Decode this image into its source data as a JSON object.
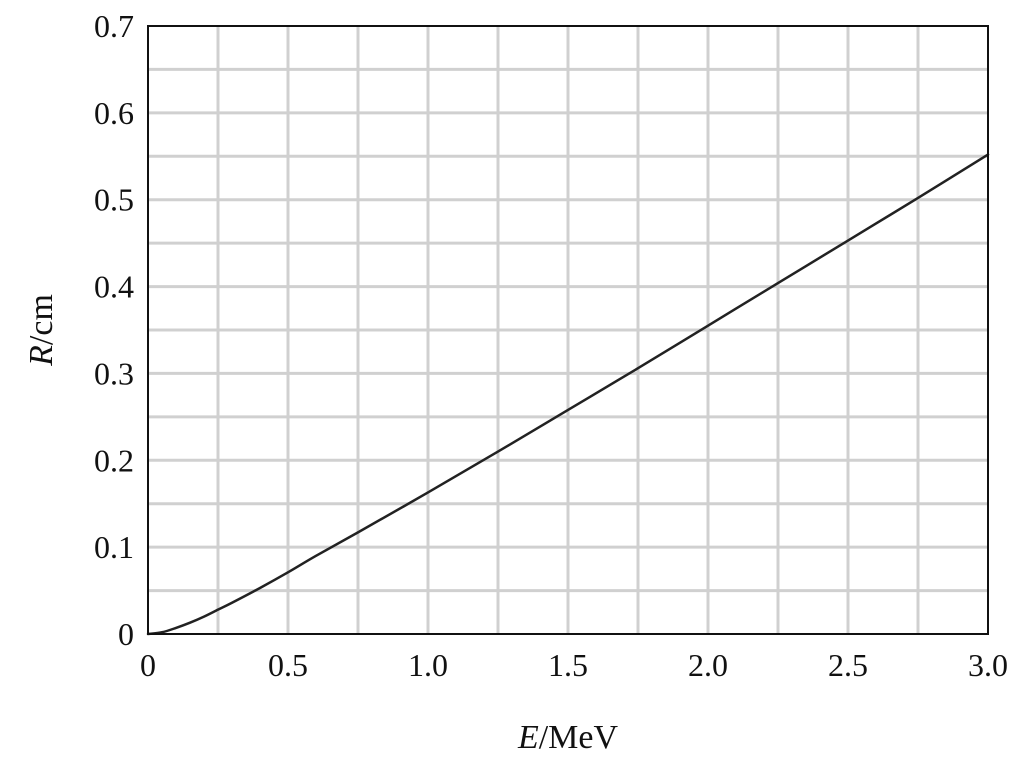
{
  "chart_data": {
    "type": "line",
    "title": "",
    "xlabel": {
      "var": "E",
      "unit": "/MeV"
    },
    "ylabel": {
      "var": "R",
      "unit": "/cm"
    },
    "xlim": [
      0,
      3.0
    ],
    "ylim": [
      0,
      0.7
    ],
    "xticks": [
      0,
      0.5,
      1.0,
      1.5,
      2.0,
      2.5,
      3.0
    ],
    "xtick_labels": [
      "0",
      "0.5",
      "1.0",
      "1.5",
      "2.0",
      "2.5",
      "3.0"
    ],
    "yticks": [
      0,
      0.1,
      0.2,
      0.3,
      0.4,
      0.5,
      0.6,
      0.7
    ],
    "ytick_labels": [
      "0",
      "0.1",
      "0.2",
      "0.3",
      "0.4",
      "0.5",
      "0.6",
      "0.7"
    ],
    "grid": true,
    "minor_grid": true,
    "legend": "none",
    "colors": {
      "line": "#222222",
      "grid": "#d0d0d0",
      "frame": "#111111"
    },
    "series": [
      {
        "x": [
          0,
          0.05,
          0.1,
          0.15,
          0.2,
          0.25,
          0.3,
          0.4,
          0.5,
          0.6,
          0.75,
          1.0,
          1.25,
          1.5,
          1.75,
          2.0,
          2.25,
          2.5,
          2.75,
          3.0
        ],
        "y": [
          0,
          0.002,
          0.007,
          0.013,
          0.02,
          0.028,
          0.036,
          0.053,
          0.071,
          0.09,
          0.117,
          0.163,
          0.21,
          0.258,
          0.306,
          0.355,
          0.404,
          0.453,
          0.502,
          0.552
        ]
      }
    ]
  }
}
